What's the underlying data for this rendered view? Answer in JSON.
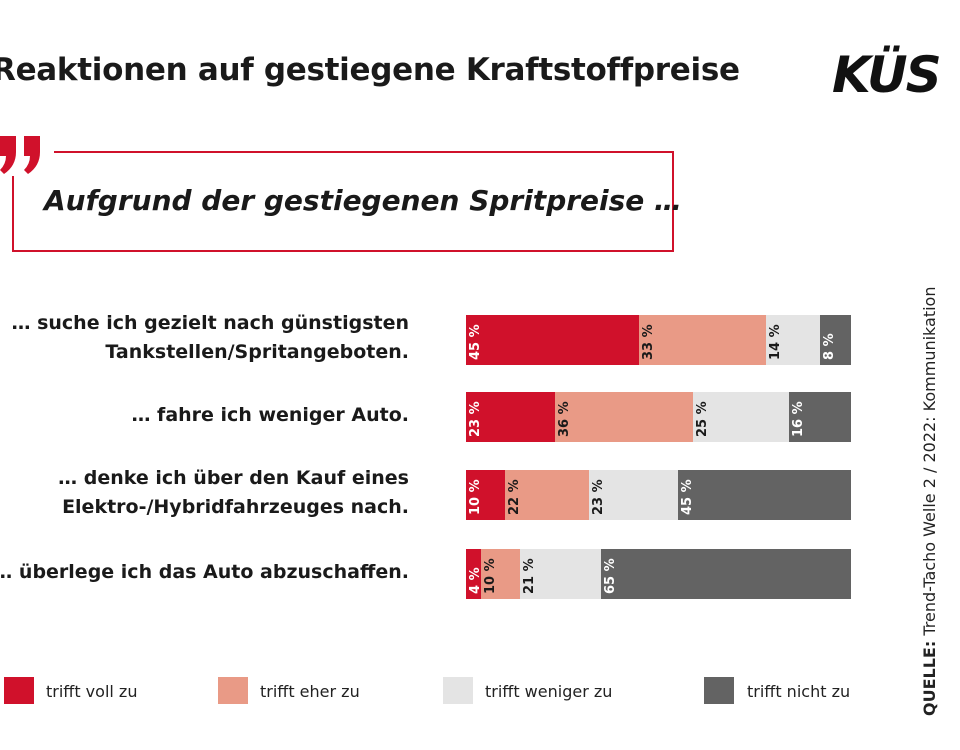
{
  "title": "Reaktionen auf gestiegene Kraftstoffpreise",
  "logo_text": "KÜS",
  "quote": "Aufgrund der gestiegenen Spritpreise …",
  "legend": [
    {
      "label": "trifft voll zu",
      "color": "#d0112b"
    },
    {
      "label": "trifft eher zu",
      "color": "#e99a86"
    },
    {
      "label": "trifft weniger zu",
      "color": "#e4e4e4"
    },
    {
      "label": "trifft nicht zu",
      "color": "#636363"
    }
  ],
  "source": {
    "label": "QUELLE:",
    "text": "Trend-Tacho Welle 2 / 2022:",
    "text2": "Kommunikation"
  },
  "chart_data": {
    "type": "bar",
    "orientation": "horizontal",
    "stacked": true,
    "unit": "%",
    "categories": [
      "… suche ich gezielt nach günstigsten Tankstellen/Spritangeboten.",
      "… fahre ich weniger Auto.",
      "… denke ich über den Kauf eines Elektro-/Hybridfahrzeuges nach.",
      "… überlege ich das Auto abzuschaffen."
    ],
    "category_lines": [
      [
        "… suche ich gezielt nach günstigsten",
        "Tankstellen/Spritangeboten."
      ],
      [
        "… fahre ich weniger Auto."
      ],
      [
        "… denke ich über den Kauf eines",
        "Elektro-/Hybridfahrzeuges nach."
      ],
      [
        "… überlege ich das Auto abzuschaffen."
      ]
    ],
    "series": [
      {
        "name": "trifft voll zu",
        "values": [
          45,
          23,
          10,
          4
        ]
      },
      {
        "name": "trifft eher zu",
        "values": [
          33,
          36,
          22,
          10
        ]
      },
      {
        "name": "trifft weniger zu",
        "values": [
          14,
          25,
          23,
          21
        ]
      },
      {
        "name": "trifft nicht zu",
        "values": [
          8,
          16,
          45,
          65
        ]
      }
    ],
    "value_labels": [
      [
        "45 %",
        "33 %",
        "14 %",
        "8 %"
      ],
      [
        "23 %",
        "36 %",
        "25 %",
        "16 %"
      ],
      [
        "10 %",
        "22 %",
        "23 %",
        "45 %"
      ],
      [
        "4 %",
        "10 %",
        "21 %",
        "65 %"
      ]
    ],
    "label_colors": [
      "#ffffff",
      "#1a1a1a",
      "#1a1a1a",
      "#ffffff"
    ],
    "legend_position": "bottom"
  }
}
